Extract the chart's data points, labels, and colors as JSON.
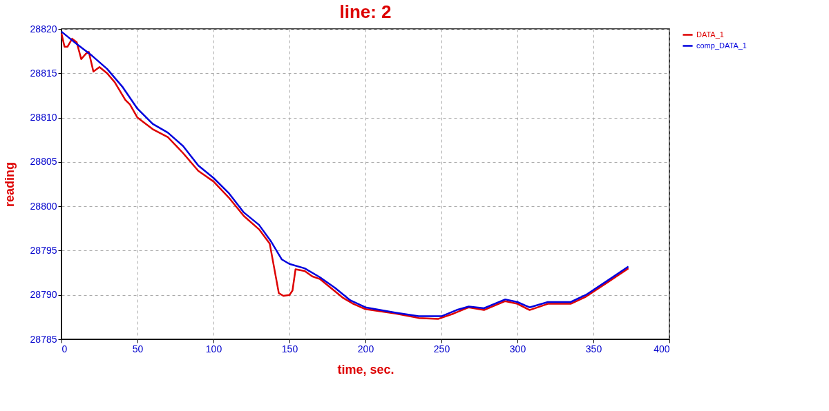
{
  "chart_data": {
    "type": "line",
    "title": "line: 2",
    "xlabel": "time, sec.",
    "ylabel": "reading",
    "xlim": [
      0,
      400
    ],
    "xticks": [
      0,
      50,
      100,
      150,
      200,
      250,
      300,
      350,
      400
    ],
    "ylim": [
      28785,
      28820
    ],
    "yticks": [
      28785,
      28790,
      28795,
      28800,
      28805,
      28810,
      28815,
      28820
    ],
    "grid": true,
    "legend": "top right",
    "marker": "none",
    "line_style": "solid",
    "series": [
      {
        "name": "DATA_1",
        "color": "#dd0000",
        "x": [
          0,
          2,
          4,
          7,
          10,
          13,
          16,
          18,
          21,
          25,
          30,
          35,
          42,
          45,
          50,
          60,
          70,
          80,
          90,
          100,
          110,
          120,
          130,
          137,
          140,
          143,
          146,
          150,
          152,
          154,
          160,
          165,
          170,
          180,
          185,
          192,
          200,
          220,
          235,
          248,
          258,
          268,
          278,
          292,
          300,
          308,
          320,
          335,
          345,
          360,
          373
        ],
        "values": [
          28819.5,
          28818,
          28818,
          28818.9,
          28818.5,
          28816.6,
          28817.2,
          28817.4,
          28815.2,
          28815.7,
          28815,
          28814,
          28812,
          28811.5,
          28810,
          28808.7,
          28807.8,
          28806,
          28804,
          28802.8,
          28801,
          28798.9,
          28797.4,
          28795.8,
          28793,
          28790.2,
          28789.9,
          28790,
          28790.5,
          28792.9,
          28792.7,
          28792.1,
          28791.8,
          28790.4,
          28789.7,
          28789,
          28788.4,
          28787.9,
          28787.4,
          28787.3,
          28787.9,
          28788.6,
          28788.3,
          28789.3,
          28789,
          28788.3,
          28789,
          28789,
          28789.8,
          28791.5,
          28793
        ]
      },
      {
        "name": "comp_DATA_1",
        "color": "#0000dd",
        "x": [
          0,
          10,
          20,
          30,
          40,
          50,
          60,
          70,
          80,
          90,
          100,
          110,
          120,
          130,
          138,
          145,
          150,
          160,
          170,
          180,
          190,
          200,
          220,
          235,
          250,
          260,
          268,
          278,
          292,
          300,
          308,
          320,
          335,
          345,
          360,
          373
        ],
        "values": [
          28819.7,
          28818.3,
          28817,
          28815.5,
          28813.5,
          28811,
          28809.3,
          28808.3,
          28806.8,
          28804.6,
          28803.2,
          28801.5,
          28799.3,
          28797.9,
          28796,
          28794,
          28793.5,
          28793,
          28792,
          28790.8,
          28789.4,
          28788.6,
          28788,
          28787.6,
          28787.6,
          28788.3,
          28788.7,
          28788.5,
          28789.5,
          28789.2,
          28788.6,
          28789.2,
          28789.2,
          28790,
          28791.7,
          28793.2
        ]
      }
    ]
  }
}
